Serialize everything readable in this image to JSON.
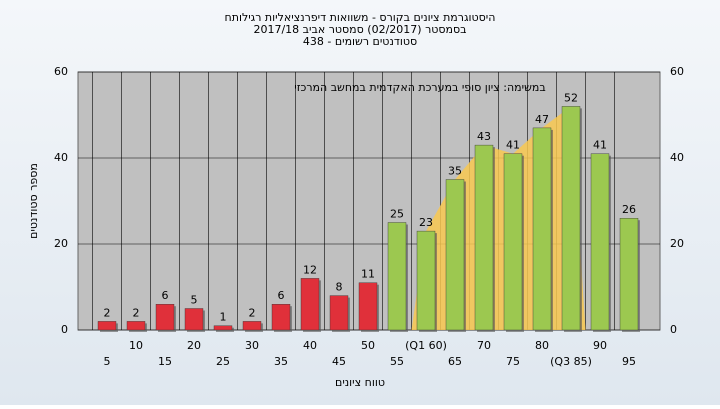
{
  "chart_data": {
    "type": "bar",
    "title": [
      "היסטוגרמת ציונים בקורס - משוואות דיפרנציאליות רגילותח",
      "בסמסטר (02/2017)  סמסטר אביב 2017/18",
      "סטודנטים רשומים - 438"
    ],
    "annotation": "במשימה: ציון סופי במערכת האקדמית במחשב המרכזי",
    "x_label": "טווח ציונים",
    "y_label": "מספר סטודנטים",
    "categories": [
      "5",
      "10",
      "15",
      "20",
      "25",
      "30",
      "35",
      "40",
      "45",
      "50",
      "55",
      "(Q1 60)",
      "65",
      "70",
      "75",
      "80",
      "(Q3 85)",
      "90",
      "95"
    ],
    "values": [
      2,
      2,
      6,
      5,
      1,
      2,
      6,
      12,
      8,
      11,
      25,
      23,
      35,
      43,
      41,
      47,
      52,
      41,
      26
    ],
    "colors": {
      "fail": "#e0303a",
      "pass": "#9cc850",
      "quartile": "#f8c850"
    },
    "pass_from": 55,
    "ylim": [
      0,
      60
    ],
    "yticks": [
      0,
      20,
      40,
      60
    ],
    "grid": true
  }
}
